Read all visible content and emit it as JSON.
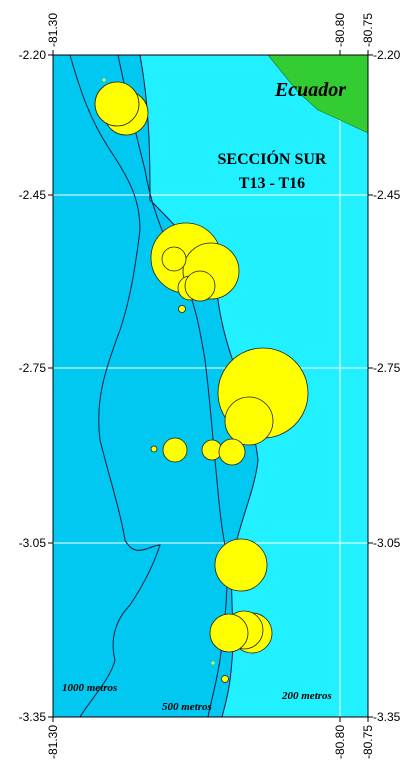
{
  "map": {
    "land_label": "Ecuador",
    "section_title_line1": "SECCIÓN SUR",
    "section_title_line2": "T13 - T16",
    "depth_labels": {
      "d1000": "1000 metros",
      "d500": "500 metros",
      "d200": "200 metros"
    },
    "y_ticks_left": [
      "-2.20",
      "-2.45",
      "-2.75",
      "-3.05",
      "-3.35"
    ],
    "y_ticks_right": [
      "-2.20",
      "-2.45",
      "-2.75",
      "-3.05",
      "-3.35"
    ],
    "x_ticks_top": [
      "-81.30",
      "-80.80",
      "-80.75"
    ],
    "x_ticks_bottom": [
      "-81.30",
      "-80.80",
      "-80.75"
    ],
    "colors": {
      "deep_water": "#00c8f0",
      "shelf_water": "#20f0ff",
      "land": "#33cc33",
      "bubble": "#ffff00",
      "grid": "#ffffff"
    }
  }
}
